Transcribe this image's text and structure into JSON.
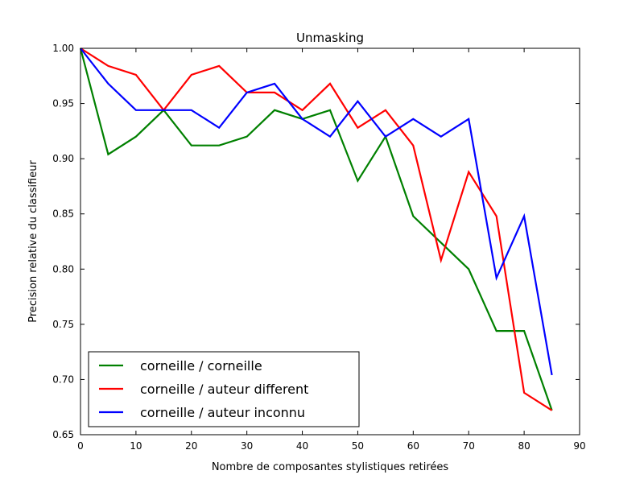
{
  "chart_data": {
    "type": "line",
    "title": "Unmasking",
    "xlabel": "Nombre de composantes stylistiques retirées",
    "ylabel": "Precision relative du classifieur",
    "xlim": [
      0,
      90
    ],
    "ylim": [
      0.65,
      1.0
    ],
    "xticks": [
      0,
      10,
      20,
      30,
      40,
      50,
      60,
      70,
      80,
      90
    ],
    "xtick_labels": [
      "0",
      "10",
      "20",
      "30",
      "40",
      "50",
      "60",
      "70",
      "80",
      "90"
    ],
    "yticks": [
      0.65,
      0.7,
      0.75,
      0.8,
      0.85,
      0.9,
      0.95,
      1.0
    ],
    "ytick_labels": [
      "0.65",
      "0.70",
      "0.75",
      "0.80",
      "0.85",
      "0.90",
      "0.95",
      "1.00"
    ],
    "grid": false,
    "legend_position": "lower-left",
    "x": [
      0,
      5,
      10,
      15,
      20,
      25,
      30,
      35,
      40,
      45,
      50,
      55,
      60,
      65,
      70,
      75,
      80,
      85
    ],
    "series": [
      {
        "name": "corneille / corneille",
        "color": "#008000",
        "values": [
          1.0,
          0.904,
          0.92,
          0.944,
          0.912,
          0.912,
          0.92,
          0.944,
          0.936,
          0.944,
          0.88,
          0.92,
          0.848,
          0.824,
          0.8,
          0.744,
          0.744,
          0.672
        ]
      },
      {
        "name": "corneille / auteur different",
        "color": "#ff0000",
        "values": [
          1.0,
          0.984,
          0.976,
          0.944,
          0.976,
          0.984,
          0.96,
          0.96,
          0.944,
          0.968,
          0.928,
          0.944,
          0.912,
          0.808,
          0.888,
          0.848,
          0.688,
          0.672
        ]
      },
      {
        "name": "corneille / auteur inconnu",
        "color": "#0000ff",
        "values": [
          1.0,
          0.968,
          0.944,
          0.944,
          0.944,
          0.928,
          0.96,
          0.968,
          0.936,
          0.92,
          0.952,
          0.92,
          0.936,
          0.92,
          0.936,
          0.792,
          0.848,
          0.704
        ]
      }
    ]
  }
}
